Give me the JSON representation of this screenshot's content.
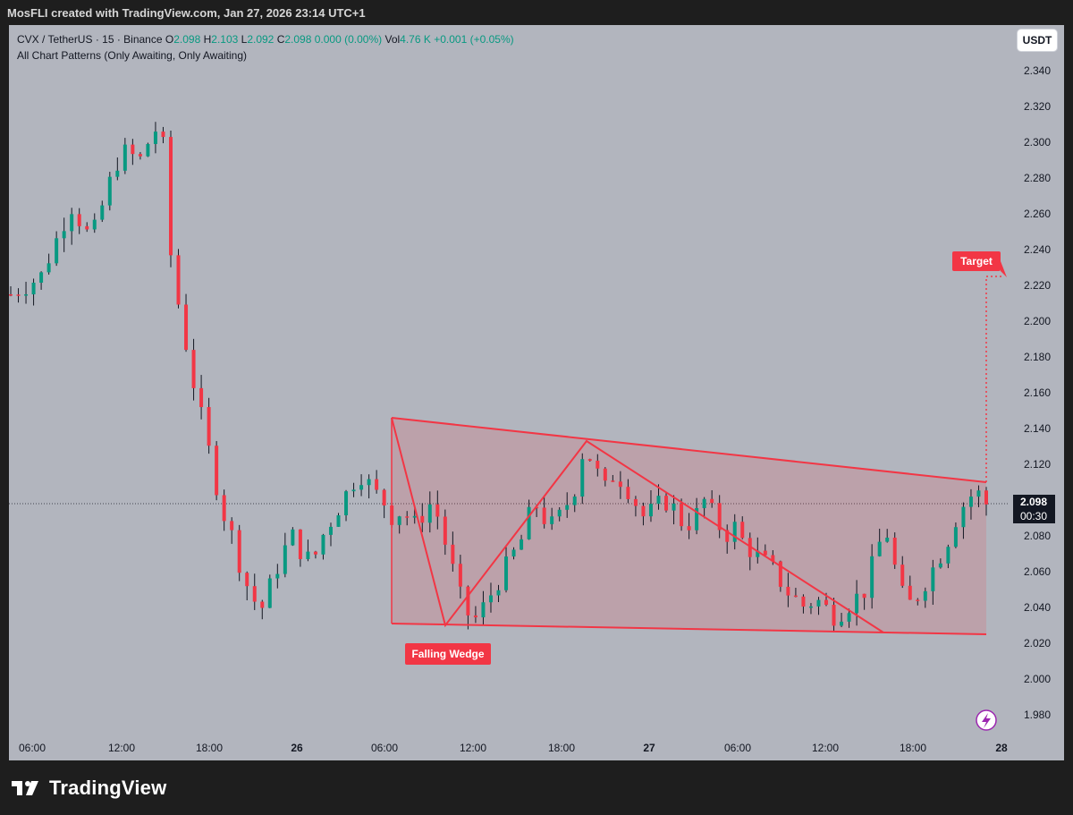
{
  "header": {
    "creator_line": "MosFLI created with TradingView.com, Jan 27, 2026 23:14 UTC+1"
  },
  "legend": {
    "symbol": "CVX / TetherUS · 15 · Binance",
    "o_label": "O",
    "o_value": "2.098",
    "h_label": "H",
    "h_value": "2.103",
    "l_label": "L",
    "l_value": "2.092",
    "c_label": "C",
    "c_value": "2.098",
    "change": "0.000 (0.00%)",
    "vol_label": "Vol",
    "vol_value": "4.76 K",
    "vol_change": "+0.001 (+0.05%)",
    "indicator": "All Chart Patterns (Only Awaiting, Only Awaiting)"
  },
  "currency_button": "USDT",
  "price_label": {
    "price": "2.098",
    "countdown": "00:30"
  },
  "footer": {
    "brand": "TradingView"
  },
  "colors": {
    "background": "#b2b5be",
    "up": "#089981",
    "down": "#f23645",
    "pattern_line": "#f23645",
    "pattern_fill": "rgba(242,54,69,0.16)",
    "label_bg": "#f23645"
  },
  "chart_data": {
    "type": "candlestick",
    "symbol": "CVX / TetherUS",
    "interval": "15",
    "exchange": "Binance",
    "ylim": [
      1.97,
      2.35
    ],
    "y_ticks": [
      "2.340",
      "2.320",
      "2.300",
      "2.280",
      "2.260",
      "2.240",
      "2.220",
      "2.200",
      "2.180",
      "2.160",
      "2.140",
      "2.120",
      "2.100",
      "2.080",
      "2.060",
      "2.040",
      "2.020",
      "2.000",
      "1.980"
    ],
    "x_ticks": [
      "06:00",
      "12:00",
      "18:00",
      "26",
      "06:00",
      "12:00",
      "18:00",
      "27",
      "06:00",
      "12:00",
      "18:00",
      "28"
    ],
    "last_price": 2.098,
    "close_path": [
      {
        "t": 0,
        "p": 2.215
      },
      {
        "t": 3,
        "p": 2.225
      },
      {
        "t": 6,
        "p": 2.265
      },
      {
        "t": 8,
        "p": 2.245
      },
      {
        "t": 10,
        "p": 2.28
      },
      {
        "t": 11,
        "p": 2.295
      },
      {
        "t": 13,
        "p": 2.29
      },
      {
        "t": 14,
        "p": 2.305
      },
      {
        "t": 15,
        "p": 2.31
      },
      {
        "t": 16,
        "p": 2.23
      },
      {
        "t": 18,
        "p": 2.17
      },
      {
        "t": 20,
        "p": 2.12
      },
      {
        "t": 21,
        "p": 2.095
      },
      {
        "t": 22,
        "p": 2.08
      },
      {
        "t": 23,
        "p": 2.06
      },
      {
        "t": 24,
        "p": 2.045
      },
      {
        "t": 25,
        "p": 2.04
      },
      {
        "t": 26,
        "p": 2.055
      },
      {
        "t": 27,
        "p": 2.07
      },
      {
        "t": 28,
        "p": 2.08
      },
      {
        "t": 29,
        "p": 2.07
      },
      {
        "t": 30,
        "p": 2.065
      },
      {
        "t": 31,
        "p": 2.08
      },
      {
        "t": 32,
        "p": 2.09
      },
      {
        "t": 33,
        "p": 2.1
      },
      {
        "t": 34,
        "p": 2.11
      },
      {
        "t": 35,
        "p": 2.115
      },
      {
        "t": 36,
        "p": 2.105
      },
      {
        "t": 37,
        "p": 2.1
      },
      {
        "t": 38,
        "p": 2.09
      },
      {
        "t": 39,
        "p": 2.095
      },
      {
        "t": 40,
        "p": 2.085
      },
      {
        "t": 42,
        "p": 2.1
      },
      {
        "t": 43,
        "p": 2.08
      },
      {
        "t": 44,
        "p": 2.06
      },
      {
        "t": 45,
        "p": 2.04
      },
      {
        "t": 46,
        "p": 2.032
      },
      {
        "t": 47,
        "p": 2.04
      },
      {
        "t": 48,
        "p": 2.05
      },
      {
        "t": 49,
        "p": 2.06
      },
      {
        "t": 50,
        "p": 2.07
      },
      {
        "t": 51,
        "p": 2.08
      },
      {
        "t": 52,
        "p": 2.1
      },
      {
        "t": 53,
        "p": 2.09
      },
      {
        "t": 54,
        "p": 2.085
      },
      {
        "t": 55,
        "p": 2.095
      },
      {
        "t": 56,
        "p": 2.105
      },
      {
        "t": 57,
        "p": 2.13
      },
      {
        "t": 58,
        "p": 2.12
      },
      {
        "t": 59,
        "p": 2.105
      },
      {
        "t": 60,
        "p": 2.115
      },
      {
        "t": 61,
        "p": 2.11
      },
      {
        "t": 62,
        "p": 2.1
      },
      {
        "t": 63,
        "p": 2.09
      },
      {
        "t": 64,
        "p": 2.095
      },
      {
        "t": 65,
        "p": 2.1
      },
      {
        "t": 66,
        "p": 2.095
      },
      {
        "t": 67,
        "p": 2.085
      },
      {
        "t": 68,
        "p": 2.09
      },
      {
        "t": 69,
        "p": 2.1
      },
      {
        "t": 70,
        "p": 2.09
      },
      {
        "t": 71,
        "p": 2.08
      },
      {
        "t": 72,
        "p": 2.085
      },
      {
        "t": 73,
        "p": 2.075
      },
      {
        "t": 74,
        "p": 2.07
      },
      {
        "t": 75,
        "p": 2.065
      },
      {
        "t": 76,
        "p": 2.06
      },
      {
        "t": 77,
        "p": 2.05
      },
      {
        "t": 78,
        "p": 2.045
      },
      {
        "t": 79,
        "p": 2.04
      },
      {
        "t": 80,
        "p": 2.045
      },
      {
        "t": 81,
        "p": 2.04
      },
      {
        "t": 82,
        "p": 2.035
      },
      {
        "t": 83,
        "p": 2.04
      },
      {
        "t": 84,
        "p": 2.045
      },
      {
        "t": 85,
        "p": 2.05
      },
      {
        "t": 86,
        "p": 2.07
      },
      {
        "t": 87,
        "p": 2.085
      },
      {
        "t": 88,
        "p": 2.06
      },
      {
        "t": 89,
        "p": 2.04
      },
      {
        "t": 90,
        "p": 2.045
      },
      {
        "t": 91,
        "p": 2.055
      },
      {
        "t": 92,
        "p": 2.065
      },
      {
        "t": 93,
        "p": 2.075
      },
      {
        "t": 94,
        "p": 2.09
      },
      {
        "t": 95,
        "p": 2.1
      },
      {
        "t": 96,
        "p": 2.105
      },
      {
        "t": 97,
        "p": 2.098
      }
    ],
    "pattern": {
      "name": "Falling Wedge",
      "upper_line": [
        {
          "t": 54.5,
          "p": 2.146
        },
        {
          "t": 98,
          "p": 2.11
        }
      ],
      "lower_line": [
        {
          "t": 54.5,
          "p": 2.031
        },
        {
          "t": 98,
          "p": 2.025
        }
      ],
      "zigzag": [
        {
          "t": 54.5,
          "p": 2.146
        },
        {
          "t": 62,
          "p": 2.03
        },
        {
          "t": 80.5,
          "p": 2.133
        },
        {
          "t": 122.5,
          "p": 2.026
        }
      ],
      "target_label": "Target",
      "target_price": 2.225
    }
  }
}
